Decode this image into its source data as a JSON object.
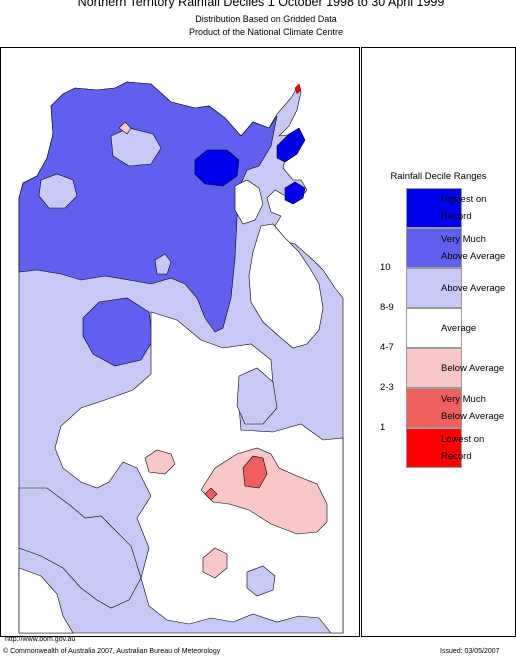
{
  "header": {
    "title": "Northern Territory Rainfall Deciles     1 October 1998 to 30 April 1999",
    "subtitle_1": "Distribution Based on Gridded Data",
    "subtitle_2": "Product of the National Climate Centre"
  },
  "legend": {
    "title": "Rainfall Decile Ranges",
    "items": [
      {
        "range": "",
        "label": "Highest on\nRecord",
        "color": "#0000ee"
      },
      {
        "range": "10",
        "label": "Very Much\nAbove Average",
        "color": "#6060ee"
      },
      {
        "range": "8-9",
        "label": "Above Average",
        "color": "#c8c8f4"
      },
      {
        "range": "4-7",
        "label": "Average",
        "color": "#ffffff"
      },
      {
        "range": "2-3",
        "label": "Below Average",
        "color": "#f8c8c8"
      },
      {
        "range": "1",
        "label": "Very Much\nBelow Average",
        "color": "#f06060"
      },
      {
        "range": "",
        "label": "Lowest on\nRecord",
        "color": "#ff0000"
      }
    ]
  },
  "footer": {
    "url": "http://www.bom.gov.au",
    "copyright": "© Commonwealth of Australia 2007, Australian Bureau of Meteorology",
    "issued": "Issued: 03/05/2007"
  }
}
